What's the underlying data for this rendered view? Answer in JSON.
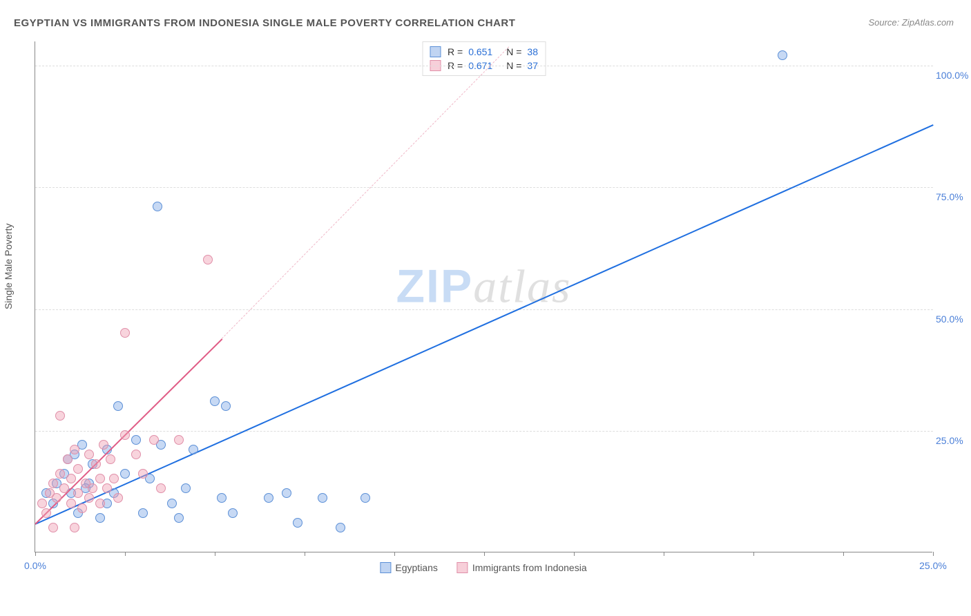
{
  "title": "EGYPTIAN VS IMMIGRANTS FROM INDONESIA SINGLE MALE POVERTY CORRELATION CHART",
  "source": "Source: ZipAtlas.com",
  "y_axis_label": "Single Male Poverty",
  "watermark": {
    "zip": "ZIP",
    "atlas": "atlas"
  },
  "chart": {
    "type": "scatter",
    "xlim": [
      0,
      25
    ],
    "ylim": [
      0,
      105
    ],
    "x_ticks": [
      0,
      2.5,
      5,
      7.5,
      10,
      12.5,
      15,
      17.5,
      20,
      22.5,
      25
    ],
    "x_tick_labels": {
      "0": "0.0%",
      "25": "25.0%"
    },
    "y_ticks": [
      25,
      50,
      75,
      100
    ],
    "y_tick_labels": [
      "25.0%",
      "50.0%",
      "75.0%",
      "100.0%"
    ],
    "grid_color": "#dddddd",
    "background": "#ffffff",
    "axis_color": "#888888",
    "tick_label_color": "#4a7fd8",
    "series": [
      {
        "id": "egyptians",
        "label": "Egyptians",
        "color_fill": "rgba(130,170,230,0.45)",
        "color_stroke": "#5b8fd6",
        "trend_color": "#1f6fe0",
        "R": "0.651",
        "N": "38",
        "trend": {
          "x1": 0,
          "y1": 6,
          "x2": 25,
          "y2": 88
        },
        "points": [
          [
            0.3,
            12
          ],
          [
            0.5,
            10
          ],
          [
            0.6,
            14
          ],
          [
            0.8,
            16
          ],
          [
            1.0,
            12
          ],
          [
            1.1,
            20
          ],
          [
            1.2,
            8
          ],
          [
            1.3,
            22
          ],
          [
            1.5,
            14
          ],
          [
            1.6,
            18
          ],
          [
            1.8,
            7
          ],
          [
            2.0,
            21
          ],
          [
            2.0,
            10
          ],
          [
            2.2,
            12
          ],
          [
            2.3,
            30
          ],
          [
            2.5,
            16
          ],
          [
            2.8,
            23
          ],
          [
            3.0,
            8
          ],
          [
            3.2,
            15
          ],
          [
            3.4,
            71
          ],
          [
            3.5,
            22
          ],
          [
            3.8,
            10
          ],
          [
            4.0,
            7
          ],
          [
            4.2,
            13
          ],
          [
            4.4,
            21
          ],
          [
            5.0,
            31
          ],
          [
            5.2,
            11
          ],
          [
            5.3,
            30
          ],
          [
            5.5,
            8
          ],
          [
            6.5,
            11
          ],
          [
            7.0,
            12
          ],
          [
            7.3,
            6
          ],
          [
            8.0,
            11
          ],
          [
            8.5,
            5
          ],
          [
            9.2,
            11
          ],
          [
            20.8,
            102
          ],
          [
            1.4,
            13
          ],
          [
            0.9,
            19
          ]
        ]
      },
      {
        "id": "indonesia",
        "label": "Immigrants from Indonesia",
        "color_fill": "rgba(240,160,180,0.45)",
        "color_stroke": "#e08fa8",
        "trend_color": "#e05c86",
        "R": "0.671",
        "N": "37",
        "trend": {
          "x1": 0,
          "y1": 6,
          "x2": 5.2,
          "y2": 44
        },
        "trend_dashed": {
          "x1": 5.2,
          "y1": 44,
          "x2": 13.2,
          "y2": 104
        },
        "points": [
          [
            0.2,
            10
          ],
          [
            0.3,
            8
          ],
          [
            0.4,
            12
          ],
          [
            0.5,
            14
          ],
          [
            0.6,
            11
          ],
          [
            0.7,
            16
          ],
          [
            0.7,
            28
          ],
          [
            0.8,
            13
          ],
          [
            0.9,
            19
          ],
          [
            1.0,
            10
          ],
          [
            1.0,
            15
          ],
          [
            1.1,
            21
          ],
          [
            1.2,
            12
          ],
          [
            1.2,
            17
          ],
          [
            1.3,
            9
          ],
          [
            1.4,
            14
          ],
          [
            1.5,
            20
          ],
          [
            1.5,
            11
          ],
          [
            1.6,
            13
          ],
          [
            1.7,
            18
          ],
          [
            1.8,
            15
          ],
          [
            1.8,
            10
          ],
          [
            1.9,
            22
          ],
          [
            2.0,
            13
          ],
          [
            2.1,
            19
          ],
          [
            2.2,
            15
          ],
          [
            2.3,
            11
          ],
          [
            2.5,
            24
          ],
          [
            2.5,
            45
          ],
          [
            2.8,
            20
          ],
          [
            3.0,
            16
          ],
          [
            3.3,
            23
          ],
          [
            3.5,
            13
          ],
          [
            4.0,
            23
          ],
          [
            4.8,
            60
          ],
          [
            1.1,
            5
          ],
          [
            0.5,
            5
          ]
        ]
      }
    ]
  },
  "legend_top_labels": {
    "r_prefix": "R =",
    "n_prefix": "N ="
  }
}
